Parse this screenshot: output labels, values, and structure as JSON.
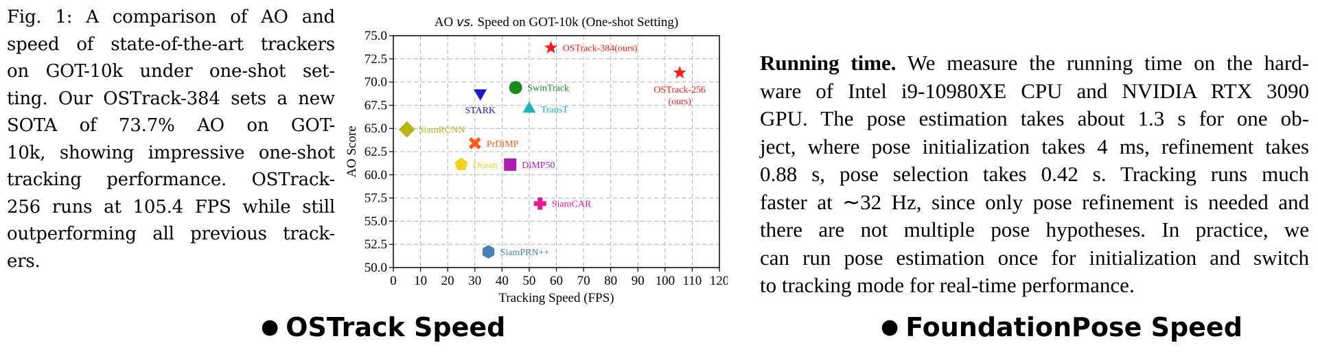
{
  "left_panel": {
    "caption_lines": [
      "Fig. 1: A comparison of AO and",
      "speed of state-of-the-art trackers",
      "on GOT-10k under one-shot set-",
      "ting. Our OSTrack-384 sets a new",
      "SOTA of 73.7% AO on GOT-",
      "10k, showing impressive one-shot",
      "tracking performance. OSTrack-",
      "256 runs at 105.4 FPS while still",
      "outperforming all previous track-",
      "ers."
    ],
    "section_label": "OSTrack Speed"
  },
  "chart_data": {
    "type": "scatter",
    "title_prefix": "AO",
    "title_vs": "vs.",
    "title_suffix": "Speed on GOT-10k (One-shot Setting)",
    "xlabel": "Tracking Speed (FPS)",
    "ylabel": "AO Score",
    "xlim": [
      0,
      120
    ],
    "ylim": [
      50,
      75
    ],
    "xticks": [
      0,
      10,
      20,
      30,
      40,
      50,
      60,
      70,
      80,
      90,
      100,
      110,
      120
    ],
    "yticks": [
      50.0,
      52.5,
      55.0,
      57.5,
      60.0,
      62.5,
      65.0,
      67.5,
      70.0,
      72.5,
      75.0
    ],
    "grid": true,
    "points": [
      {
        "name": "OSTrack-384(ours)",
        "x": 58,
        "y": 73.7,
        "marker": "star",
        "color": "#ff1a1a",
        "label_pos": "right"
      },
      {
        "name": "OSTrack-256",
        "name2": "(ours)",
        "x": 105.4,
        "y": 71.0,
        "marker": "star",
        "color": "#ff1a1a",
        "label_pos": "below"
      },
      {
        "name": "SwinTrack",
        "x": 45,
        "y": 69.4,
        "marker": "circle",
        "color": "#1b8a1b",
        "label_pos": "right"
      },
      {
        "name": "STARK",
        "x": 32,
        "y": 68.8,
        "marker": "triangle-down",
        "color": "#1a1acc",
        "label_pos": "below"
      },
      {
        "name": "TransT",
        "x": 50,
        "y": 67.1,
        "marker": "triangle-up",
        "color": "#1cb5b5",
        "label_pos": "right"
      },
      {
        "name": "SiamRCNN",
        "x": 5,
        "y": 64.9,
        "marker": "diamond",
        "color": "#b5b51a",
        "label_pos": "right"
      },
      {
        "name": "PrDiMP",
        "x": 30,
        "y": 63.4,
        "marker": "x",
        "color": "#ff5a1a",
        "label_pos": "right"
      },
      {
        "name": "Ocean",
        "x": 25,
        "y": 61.1,
        "marker": "pentagon",
        "color": "#f2d21a",
        "label_pos": "right"
      },
      {
        "name": "DiMP50",
        "x": 43,
        "y": 61.1,
        "marker": "square",
        "color": "#b31ab3",
        "label_pos": "right"
      },
      {
        "name": "SiamCAR",
        "x": 54,
        "y": 56.9,
        "marker": "plus",
        "color": "#e81a8c",
        "label_pos": "right"
      },
      {
        "name": "SiamPRN++",
        "x": 35,
        "y": 51.7,
        "marker": "hexagon",
        "color": "#4682b4",
        "label_pos": "right"
      }
    ]
  },
  "right_panel": {
    "heading": "Running time.",
    "lines": [
      " We measure the running time on the hard-",
      "ware of Intel i9-10980XE CPU and NVIDIA RTX 3090",
      "GPU. The pose estimation takes about 1.3 s for one ob-",
      "ject, where pose initialization takes 4 ms, refinement takes",
      "0.88 s, pose selection takes 0.42 s.  Tracking runs much",
      "faster at ∼32 Hz, since only pose refinement is needed and",
      "there are not multiple pose hypotheses.  In practice, we",
      "can run pose estimation once for initialization and switch",
      "to tracking mode for real-time performance."
    ],
    "section_label": "FoundationPose Speed"
  },
  "bullet_glyph": "●"
}
